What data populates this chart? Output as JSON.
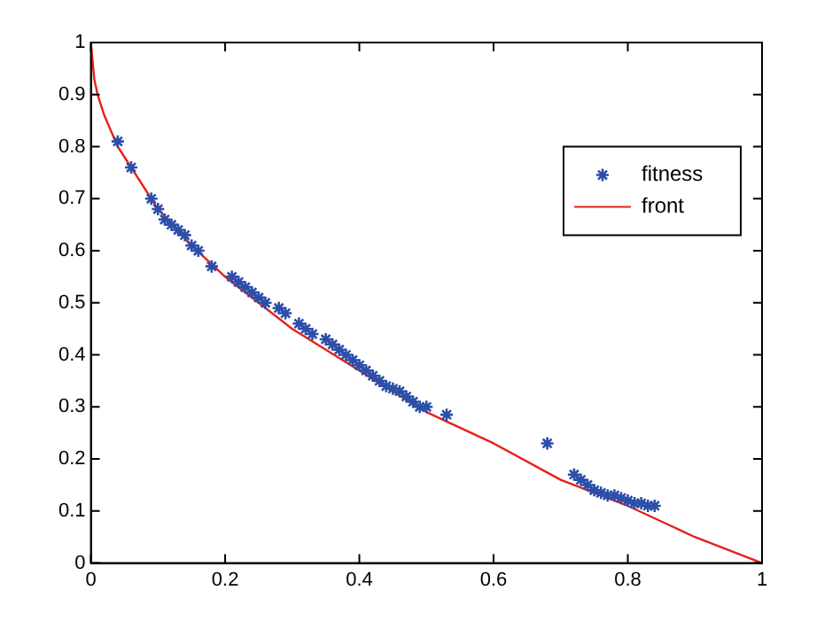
{
  "chart_data": {
    "type": "scatter",
    "xlim": [
      0,
      1
    ],
    "ylim": [
      0,
      1
    ],
    "xticks": [
      0,
      0.2,
      0.4,
      0.6,
      0.8,
      1
    ],
    "yticks": [
      0,
      0.1,
      0.2,
      0.3,
      0.4,
      0.5,
      0.6,
      0.7,
      0.8,
      0.9,
      1
    ],
    "grid": false,
    "legend": "right",
    "series": [
      {
        "name": "fitness",
        "type": "scatter",
        "color": "#2b4fa8",
        "marker": "cross",
        "x": [
          0.04,
          0.06,
          0.09,
          0.1,
          0.11,
          0.12,
          0.13,
          0.14,
          0.15,
          0.16,
          0.18,
          0.21,
          0.22,
          0.23,
          0.24,
          0.25,
          0.26,
          0.28,
          0.29,
          0.31,
          0.32,
          0.33,
          0.35,
          0.36,
          0.37,
          0.38,
          0.39,
          0.4,
          0.41,
          0.42,
          0.43,
          0.44,
          0.45,
          0.46,
          0.47,
          0.48,
          0.49,
          0.5,
          0.53,
          0.68,
          0.72,
          0.73,
          0.74,
          0.75,
          0.76,
          0.77,
          0.78,
          0.79,
          0.8,
          0.81,
          0.82,
          0.83,
          0.84
        ],
        "values": [
          0.81,
          0.76,
          0.7,
          0.68,
          0.66,
          0.65,
          0.64,
          0.63,
          0.61,
          0.6,
          0.57,
          0.55,
          0.54,
          0.53,
          0.52,
          0.51,
          0.5,
          0.49,
          0.48,
          0.46,
          0.45,
          0.44,
          0.43,
          0.42,
          0.41,
          0.4,
          0.39,
          0.38,
          0.37,
          0.36,
          0.35,
          0.34,
          0.335,
          0.33,
          0.32,
          0.31,
          0.3,
          0.3,
          0.285,
          0.23,
          0.17,
          0.16,
          0.15,
          0.14,
          0.135,
          0.13,
          0.13,
          0.125,
          0.12,
          0.115,
          0.115,
          0.11,
          0.11
        ]
      },
      {
        "name": "front",
        "type": "line",
        "color": "#e8201c",
        "marker": "none",
        "line_style": "solid",
        "x": [
          0,
          0.005,
          0.01,
          0.02,
          0.04,
          0.06,
          0.1,
          0.15,
          0.2,
          0.25,
          0.3,
          0.4,
          0.5,
          0.6,
          0.7,
          0.8,
          0.9,
          1
        ],
        "values": [
          1,
          0.93,
          0.9,
          0.86,
          0.8,
          0.76,
          0.68,
          0.61,
          0.55,
          0.5,
          0.45,
          0.37,
          0.29,
          0.23,
          0.16,
          0.11,
          0.05,
          0
        ]
      }
    ]
  }
}
